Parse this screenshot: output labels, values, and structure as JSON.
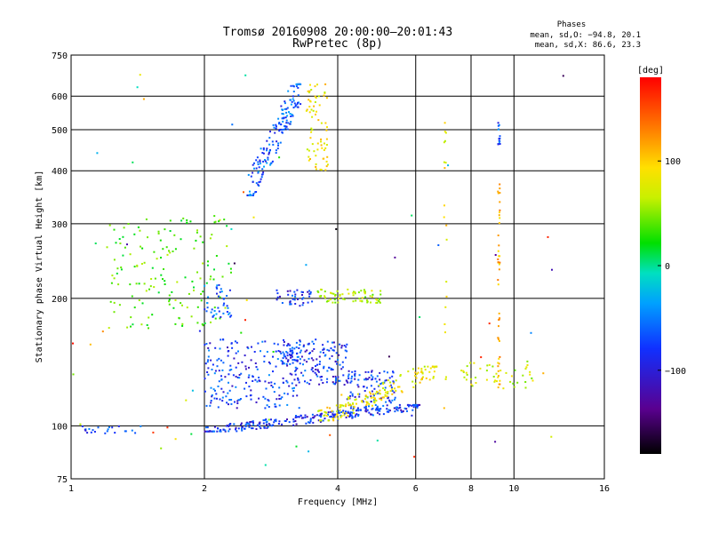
{
  "chart_data": {
    "type": "scatter",
    "title": "Tromsø 20160908 20:00:00–20:01:43",
    "subtitle": "RwPretec (8p)",
    "xlabel": "Frequency [MHz]",
    "ylabel": "Stationary phase Virtual Height [km]",
    "x_scale": "log",
    "y_scale": "log",
    "xlim": [
      1,
      16
    ],
    "ylim": [
      75,
      750
    ],
    "x_ticks": [
      "1",
      "2",
      "4",
      "6",
      "8",
      "10",
      "16"
    ],
    "y_ticks": [
      "75",
      "100",
      "200",
      "300",
      "400",
      "500",
      "600",
      "750"
    ],
    "grid": true,
    "stats": {
      "heading": "Phases",
      "line_o": "mean, sd,O: −94.8, 20.1",
      "line_x": "mean, sd,X:  86.6, 23.3"
    },
    "colorbar": {
      "label": "[deg]",
      "range": [
        -180,
        180
      ],
      "ticks": [
        "100",
        "0",
        "−100"
      ],
      "tick_values": [
        100,
        0,
        -100
      ]
    },
    "clusters": [
      {
        "name": "E-layer trace",
        "phase": -110,
        "x_range": [
          2.0,
          6.2
        ],
        "y_range": [
          97,
          112
        ],
        "shape": "curve",
        "n": 260
      },
      {
        "name": "low trace",
        "phase": -105,
        "x_range": [
          1.05,
          1.45
        ],
        "y_range": [
          96,
          100
        ],
        "shape": "box",
        "n": 22
      },
      {
        "name": "F-lower cloud A",
        "phase": -105,
        "x_range": [
          2.0,
          3.3
        ],
        "y_range": [
          110,
          160
        ],
        "shape": "box",
        "n": 220
      },
      {
        "name": "F-lower cloud B",
        "phase": -110,
        "x_range": [
          3.0,
          4.2
        ],
        "y_range": [
          125,
          160
        ],
        "shape": "box",
        "n": 160
      },
      {
        "name": "F-lower cloud C",
        "phase": -110,
        "x_range": [
          4.2,
          5.4
        ],
        "y_range": [
          108,
          135
        ],
        "shape": "box",
        "n": 110
      },
      {
        "name": "X-mode curve",
        "phase": 80,
        "x_range": [
          3.6,
          6.8
        ],
        "y_range": [
          103,
          138
        ],
        "shape": "curve",
        "n": 160
      },
      {
        "name": "X-mode points",
        "phase": 60,
        "x_range": [
          7.6,
          11.2
        ],
        "y_range": [
          122,
          142
        ],
        "shape": "box",
        "n": 45
      },
      {
        "name": "F2 O-mode",
        "phase": -95,
        "x_range": [
          2.5,
          3.3
        ],
        "y_range": [
          350,
          640
        ],
        "shape": "curve",
        "n": 170
      },
      {
        "name": "F2 X-mode",
        "phase": 85,
        "x_range": [
          3.4,
          3.8
        ],
        "y_range": [
          400,
          640
        ],
        "shape": "box",
        "n": 70
      },
      {
        "name": "spread F",
        "phase": 30,
        "x_range": [
          1.2,
          2.3
        ],
        "y_range": [
          170,
          315
        ],
        "shape": "box",
        "n": 160
      },
      {
        "name": "mid band O",
        "phase": -95,
        "x_range": [
          2.0,
          2.3
        ],
        "y_range": [
          180,
          215
        ],
        "shape": "box",
        "n": 40
      },
      {
        "name": "mid band 200",
        "phase": -110,
        "x_range": [
          2.9,
          3.5
        ],
        "y_range": [
          192,
          210
        ],
        "shape": "box",
        "n": 40
      },
      {
        "name": "mid band X",
        "phase": 55,
        "x_range": [
          3.6,
          5.0
        ],
        "y_range": [
          195,
          210
        ],
        "shape": "box",
        "n": 70
      },
      {
        "name": "vertical streak 9.2",
        "phase": 110,
        "x_range": [
          9.2,
          9.3
        ],
        "y_range": [
          120,
          380
        ],
        "shape": "vline",
        "n": 45
      },
      {
        "name": "vertical streak 9.2 upper",
        "phase": -100,
        "x_range": [
          9.2,
          9.3
        ],
        "y_range": [
          460,
          520
        ],
        "shape": "vline",
        "n": 14
      },
      {
        "name": "vertical streak 7.0",
        "phase": 80,
        "x_range": [
          6.95,
          7.05
        ],
        "y_range": [
          110,
          520
        ],
        "shape": "vline",
        "n": 20
      },
      {
        "name": "scattered",
        "phase": 0,
        "x_range": [
          1.0,
          13.0
        ],
        "y_range": [
          80,
          700
        ],
        "shape": "box",
        "n": 60
      }
    ]
  }
}
